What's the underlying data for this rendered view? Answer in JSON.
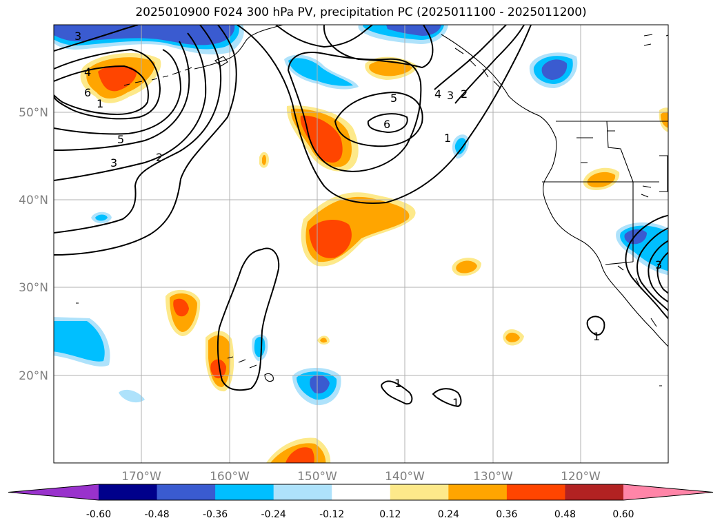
{
  "title": "2025010900 F024 300 hPa PV, precipitation PC (2025011100 - 2025011200)",
  "map": {
    "lat_ticks": [
      {
        "label": "50°N",
        "value": 50
      },
      {
        "label": "40°N",
        "value": 40
      },
      {
        "label": "30°N",
        "value": 30
      },
      {
        "label": "20°N",
        "value": 20
      }
    ],
    "lon_ticks": [
      {
        "label": "170°W",
        "value": -170
      },
      {
        "label": "160°W",
        "value": -160
      },
      {
        "label": "150°W",
        "value": -150
      },
      {
        "label": "140°W",
        "value": -140
      },
      {
        "label": "130°W",
        "value": -130
      },
      {
        "label": "120°W",
        "value": -120
      }
    ],
    "contour_labels": [
      "3",
      "4",
      "6",
      "1",
      "5",
      "3",
      "2",
      "5",
      "6",
      "4",
      "3",
      "2",
      "1",
      "1",
      "1",
      "1",
      "3"
    ]
  },
  "colorbar": {
    "labels": [
      "-0.60",
      "-0.48",
      "-0.36",
      "-0.24",
      "-0.12",
      "0.12",
      "0.24",
      "0.36",
      "0.48",
      "0.60"
    ],
    "colors": [
      "#9932cc",
      "#00008b",
      "#3a5bd0",
      "#00bfff",
      "#aee2fb",
      "#ffffff",
      "#fde98a",
      "#ffa500",
      "#ff4500",
      "#b22222",
      "#ff85a8"
    ]
  }
}
